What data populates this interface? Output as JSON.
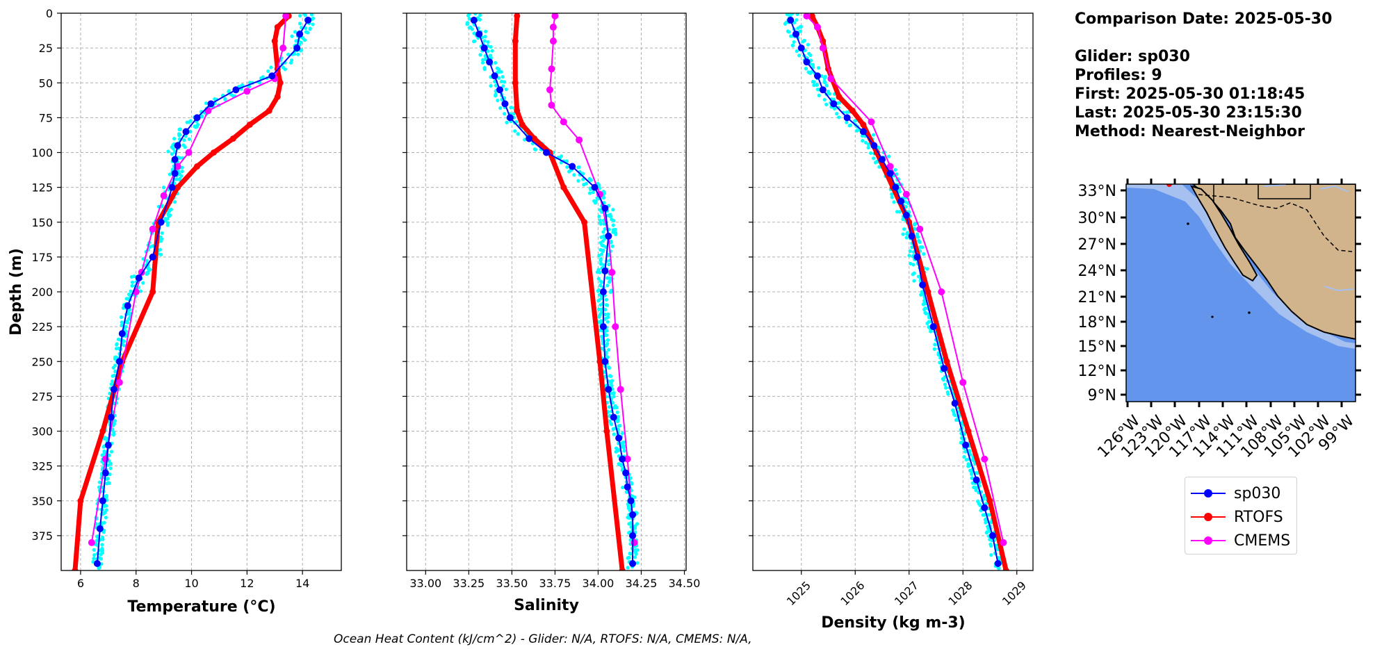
{
  "info": {
    "comparison_date": "Comparison Date: 2025-05-30",
    "glider": "Glider: sp030",
    "profiles": "Profiles: 9",
    "first": "First: 2025-05-30 01:18:45",
    "last": "Last: 2025-05-30 23:15:30",
    "method": "Method: Nearest-Neighbor"
  },
  "footer": "Ocean Heat Content (kJ/cm^2) - Glider: N/A,  RTOFS: N/A,  CMEMS: N/A,",
  "legend": [
    {
      "name": "sp030",
      "color": "#0000ff"
    },
    {
      "name": "RTOFS",
      "color": "#ff0000"
    },
    {
      "name": "CMEMS",
      "color": "#ff00ff"
    }
  ],
  "colors": {
    "glider_raw": "#00ffff",
    "ocean": "#6495ed",
    "land": "#d2b48c",
    "shallow": "#a6c0ef"
  },
  "chart_data": [
    {
      "type": "line",
      "xlabel": "Temperature (°C)",
      "ylabel": "Depth (m)",
      "xlim": [
        5.3,
        15.4
      ],
      "ylim": [
        400,
        0
      ],
      "xticks": [
        6,
        8,
        10,
        12,
        14
      ],
      "yticks": [
        0,
        25,
        50,
        75,
        100,
        125,
        150,
        175,
        200,
        225,
        250,
        275,
        300,
        325,
        350,
        375
      ],
      "grid": true,
      "series": [
        {
          "name": "sp030",
          "x": [
            14.2,
            13.9,
            13.8,
            12.9,
            11.6,
            10.7,
            10.2,
            9.8,
            9.5,
            9.4,
            9.4,
            9.3,
            8.9,
            8.6,
            8.1,
            7.7,
            7.5,
            7.4,
            7.2,
            7.1,
            7.0,
            6.9,
            6.8,
            6.7,
            6.6
          ],
          "y": [
            5,
            15,
            25,
            45,
            55,
            65,
            75,
            85,
            95,
            105,
            115,
            125,
            150,
            175,
            190,
            210,
            230,
            250,
            270,
            290,
            310,
            330,
            350,
            370,
            395
          ]
        },
        {
          "name": "RTOFS",
          "x": [
            13.5,
            13.1,
            13.0,
            13.1,
            13.2,
            13.1,
            12.8,
            12.1,
            11.5,
            10.8,
            10.2,
            9.5,
            8.8,
            8.6,
            7.5,
            6.8,
            6.0,
            5.8
          ],
          "y": [
            2,
            10,
            20,
            40,
            50,
            60,
            70,
            80,
            90,
            100,
            110,
            125,
            150,
            200,
            250,
            300,
            350,
            400
          ]
        },
        {
          "name": "CMEMS",
          "x": [
            13.4,
            13.3,
            13.0,
            12.0,
            10.6,
            9.9,
            9.5,
            9.0,
            8.6,
            8.2,
            8.0,
            7.4,
            6.9,
            6.4
          ],
          "y": [
            2,
            25,
            47,
            56,
            70,
            100,
            110,
            131,
            155,
            186,
            200,
            265,
            320,
            380
          ]
        }
      ]
    },
    {
      "type": "line",
      "xlabel": "Salinity",
      "xlim": [
        32.89,
        34.51
      ],
      "ylim": [
        400,
        0
      ],
      "xticks": [
        33.0,
        33.25,
        33.5,
        33.75,
        34.0,
        34.25,
        34.5
      ],
      "grid": true,
      "series": [
        {
          "name": "sp030",
          "x": [
            33.28,
            33.31,
            33.34,
            33.37,
            33.4,
            33.43,
            33.46,
            33.49,
            33.6,
            33.7,
            33.85,
            33.98,
            34.04,
            34.06,
            34.04,
            34.03,
            34.03,
            34.04,
            34.06,
            34.09,
            34.12,
            34.14,
            34.16,
            34.17,
            34.19,
            34.2,
            34.2,
            34.2
          ],
          "y": [
            5,
            15,
            25,
            35,
            45,
            55,
            65,
            75,
            90,
            100,
            110,
            125,
            140,
            160,
            185,
            200,
            225,
            250,
            270,
            290,
            305,
            320,
            330,
            340,
            350,
            360,
            375,
            395
          ]
        },
        {
          "name": "RTOFS",
          "x": [
            33.53,
            33.52,
            33.52,
            33.53,
            33.56,
            33.63,
            33.72,
            33.8,
            33.92,
            34.01,
            34.05,
            34.14
          ],
          "y": [
            2,
            20,
            50,
            70,
            80,
            90,
            100,
            125,
            150,
            250,
            300,
            400
          ]
        },
        {
          "name": "CMEMS",
          "x": [
            33.75,
            33.74,
            33.74,
            33.73,
            33.72,
            33.73,
            33.8,
            33.89,
            34.01,
            34.06,
            34.08,
            34.1,
            34.13,
            34.17,
            34.21
          ],
          "y": [
            2,
            10,
            20,
            40,
            55,
            66,
            78,
            91,
            130,
            160,
            186,
            225,
            270,
            320,
            380
          ]
        }
      ]
    },
    {
      "type": "line",
      "xlabel": "Density (kg m-3)",
      "xlim": [
        1024.1,
        1029.3
      ],
      "ylim": [
        400,
        0
      ],
      "xticks": [
        1025,
        1026,
        1027,
        1028,
        1029
      ],
      "grid": true,
      "series": [
        {
          "name": "sp030",
          "x": [
            1024.8,
            1024.9,
            1025.0,
            1025.1,
            1025.3,
            1025.4,
            1025.6,
            1025.85,
            1026.15,
            1026.35,
            1026.5,
            1026.65,
            1026.75,
            1026.85,
            1026.95,
            1027.05,
            1027.15,
            1027.25,
            1027.45,
            1027.65,
            1027.85,
            1028.05,
            1028.25,
            1028.4,
            1028.55,
            1028.65
          ],
          "y": [
            5,
            15,
            25,
            35,
            45,
            55,
            65,
            75,
            85,
            95,
            105,
            115,
            125,
            135,
            145,
            160,
            175,
            195,
            225,
            255,
            280,
            310,
            335,
            355,
            375,
            395
          ]
        },
        {
          "name": "RTOFS",
          "x": [
            1025.2,
            1025.3,
            1025.4,
            1025.5,
            1025.7,
            1025.95,
            1026.15,
            1026.4,
            1026.7,
            1027.0,
            1027.35,
            1027.7,
            1028.1,
            1028.5,
            1028.8
          ],
          "y": [
            2,
            10,
            20,
            40,
            60,
            70,
            80,
            100,
            125,
            150,
            200,
            250,
            300,
            350,
            400
          ]
        },
        {
          "name": "CMEMS",
          "x": [
            1025.1,
            1025.3,
            1025.4,
            1025.55,
            1026.3,
            1026.65,
            1026.95,
            1027.2,
            1027.6,
            1028.0,
            1028.4,
            1028.75
          ],
          "y": [
            2,
            10,
            25,
            47,
            78,
            110,
            130,
            155,
            200,
            265,
            320,
            380
          ]
        }
      ]
    }
  ],
  "map": {
    "lat_ticks": [
      "33°N",
      "30°N",
      "27°N",
      "24°N",
      "21°N",
      "18°N",
      "15°N",
      "12°N",
      "9°N"
    ],
    "lon_ticks": [
      "126°W",
      "123°W",
      "120°W",
      "117°W",
      "114°W",
      "111°W",
      "108°W",
      "105°W",
      "102°W",
      "99°W"
    ]
  }
}
